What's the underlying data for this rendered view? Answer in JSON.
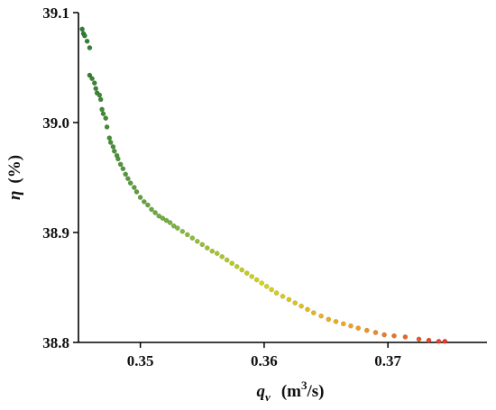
{
  "chart_data": {
    "type": "scatter",
    "title": "",
    "xlabel": {
      "symbol": "q",
      "subscript": "v",
      "unit_prefix": "(m",
      "unit_sup": "3",
      "unit_suffix": "/s)"
    },
    "ylabel": {
      "symbol": "η",
      "unit": "(%)"
    },
    "xlim": [
      0.345,
      0.378
    ],
    "ylim": [
      38.8,
      39.1
    ],
    "xticks": [
      0.35,
      0.36,
      0.37
    ],
    "yticks": [
      38.8,
      38.9,
      39.0,
      39.1
    ],
    "x_tick_labels": [
      "0.35",
      "0.36",
      "0.37"
    ],
    "y_tick_labels": [
      "38.8",
      "38.9",
      "39.0",
      "39.1"
    ],
    "grid": false,
    "legend": "none",
    "color_gradient": [
      "#2e7d32",
      "#7cb342",
      "#d4d21c",
      "#f0a020",
      "#e23a2a"
    ],
    "series": [
      {
        "points": [
          [
            0.3453,
            39.085
          ],
          [
            0.3454,
            39.081
          ],
          [
            0.3455,
            39.079
          ],
          [
            0.3457,
            39.074
          ],
          [
            0.3459,
            39.068
          ],
          [
            0.3459,
            39.043
          ],
          [
            0.3461,
            39.04
          ],
          [
            0.3463,
            39.036
          ],
          [
            0.3464,
            39.031
          ],
          [
            0.3465,
            39.027
          ],
          [
            0.3467,
            39.025
          ],
          [
            0.3468,
            39.021
          ],
          [
            0.3469,
            39.012
          ],
          [
            0.347,
            39.008
          ],
          [
            0.3472,
            39.004
          ],
          [
            0.3473,
            38.996
          ],
          [
            0.3475,
            38.986
          ],
          [
            0.3476,
            38.982
          ],
          [
            0.3478,
            38.978
          ],
          [
            0.3479,
            38.974
          ],
          [
            0.3481,
            38.97
          ],
          [
            0.3482,
            38.967
          ],
          [
            0.3484,
            38.962
          ],
          [
            0.3486,
            38.958
          ],
          [
            0.3488,
            38.953
          ],
          [
            0.349,
            38.949
          ],
          [
            0.3492,
            38.945
          ],
          [
            0.3495,
            38.941
          ],
          [
            0.3497,
            38.937
          ],
          [
            0.35,
            38.932
          ],
          [
            0.3503,
            38.928
          ],
          [
            0.3506,
            38.925
          ],
          [
            0.3509,
            38.921
          ],
          [
            0.3512,
            38.918
          ],
          [
            0.3515,
            38.915
          ],
          [
            0.3518,
            38.913
          ],
          [
            0.3521,
            38.911
          ],
          [
            0.3524,
            38.909
          ],
          [
            0.3527,
            38.906
          ],
          [
            0.353,
            38.904
          ],
          [
            0.3534,
            38.901
          ],
          [
            0.3538,
            38.898
          ],
          [
            0.3542,
            38.895
          ],
          [
            0.3546,
            38.892
          ],
          [
            0.355,
            38.889
          ],
          [
            0.3554,
            38.886
          ],
          [
            0.3558,
            38.883
          ],
          [
            0.3562,
            38.881
          ],
          [
            0.3566,
            38.878
          ],
          [
            0.357,
            38.875
          ],
          [
            0.3574,
            38.872
          ],
          [
            0.3578,
            38.869
          ],
          [
            0.3582,
            38.866
          ],
          [
            0.3586,
            38.863
          ],
          [
            0.359,
            38.86
          ],
          [
            0.3594,
            38.857
          ],
          [
            0.3598,
            38.854
          ],
          [
            0.3602,
            38.851
          ],
          [
            0.3606,
            38.848
          ],
          [
            0.361,
            38.845
          ],
          [
            0.3615,
            38.842
          ],
          [
            0.362,
            38.839
          ],
          [
            0.3625,
            38.836
          ],
          [
            0.363,
            38.833
          ],
          [
            0.3635,
            38.83
          ],
          [
            0.364,
            38.827
          ],
          [
            0.3646,
            38.824
          ],
          [
            0.3652,
            38.821
          ],
          [
            0.3658,
            38.819
          ],
          [
            0.3664,
            38.817
          ],
          [
            0.367,
            38.815
          ],
          [
            0.3676,
            38.813
          ],
          [
            0.3683,
            38.811
          ],
          [
            0.369,
            38.809
          ],
          [
            0.3697,
            38.807
          ],
          [
            0.3705,
            38.806
          ],
          [
            0.3714,
            38.805
          ],
          [
            0.3725,
            38.803
          ],
          [
            0.3733,
            38.802
          ],
          [
            0.3741,
            38.801
          ],
          [
            0.3746,
            38.801
          ]
        ]
      }
    ]
  }
}
